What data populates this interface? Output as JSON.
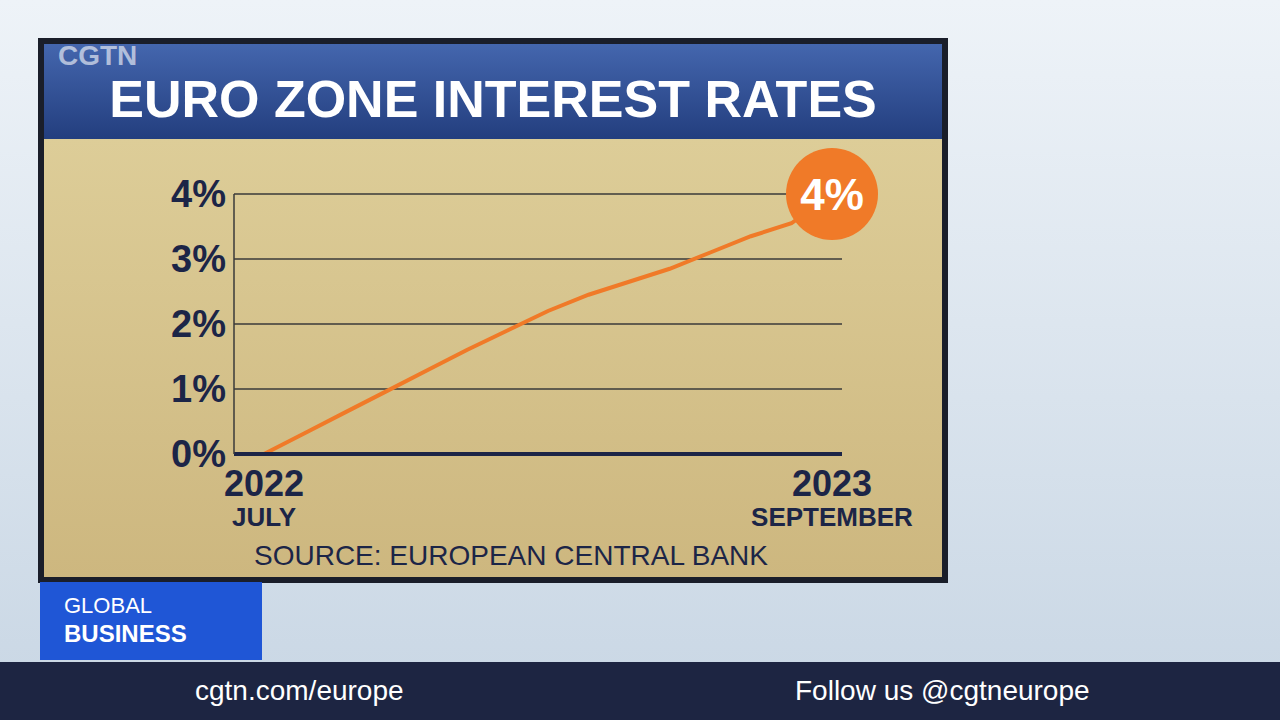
{
  "header": {
    "logo": "CGTN"
  },
  "chart_data": {
    "type": "line",
    "title": "EURO ZONE INTEREST RATES",
    "source": "SOURCE: EUROPEAN CENTRAL BANK",
    "categories": [
      "2022 JULY",
      null,
      null,
      null,
      null,
      null,
      null,
      null,
      null,
      null,
      null,
      null,
      null,
      null,
      "2023 SEPTEMBER"
    ],
    "values": [
      0,
      0.32,
      0.64,
      0.96,
      1.28,
      1.6,
      1.9,
      2.2,
      2.45,
      2.65,
      2.85,
      3.1,
      3.35,
      3.55,
      4
    ],
    "color": "#f07a28",
    "ylim": [
      0,
      4
    ],
    "yticks": [
      {
        "value": 0,
        "label": "0%"
      },
      {
        "value": 1,
        "label": "1%"
      },
      {
        "value": 2,
        "label": "2%"
      },
      {
        "value": 3,
        "label": "3%"
      },
      {
        "value": 4,
        "label": "4%"
      }
    ],
    "grid": true,
    "marker": "none",
    "line_style": "solid",
    "annotations": [
      {
        "text": "4%",
        "category": "2023 SEPTEMBER",
        "y": 4
      }
    ]
  },
  "footer": {
    "program": [
      "GLOBAL",
      "BUSINESS"
    ],
    "website": "cgtn.com/europe",
    "follow": "Follow us @cgtneurope"
  }
}
